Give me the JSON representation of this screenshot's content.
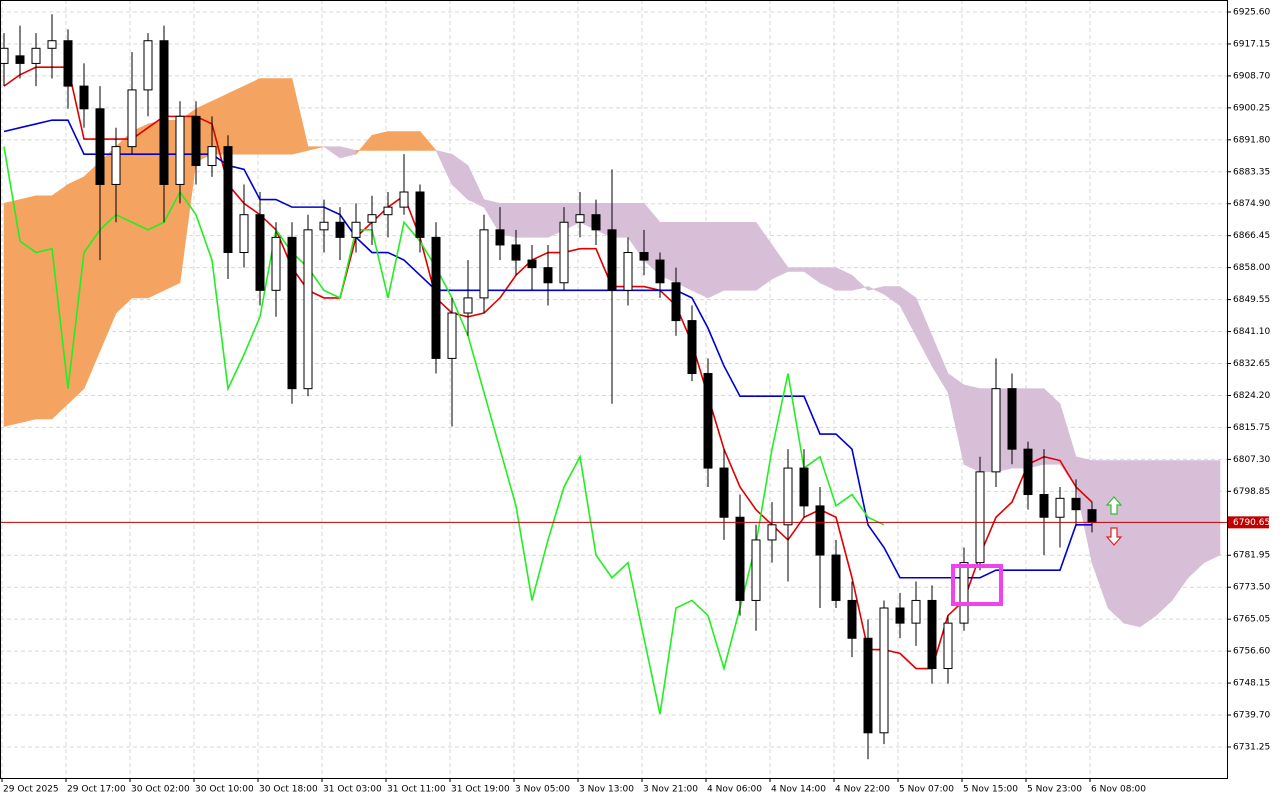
{
  "chart_data": {
    "type": "candlestick",
    "categories": [
      "29 Oct 2025",
      null,
      null,
      null,
      "29 Oct 17:00",
      null,
      null,
      null,
      "30 Oct 02:00",
      null,
      null,
      null,
      "30 Oct 10:00",
      null,
      null,
      null,
      "30 Oct 18:00",
      null,
      null,
      null,
      "31 Oct 03:00",
      null,
      null,
      null,
      "31 Oct 11:00",
      null,
      null,
      null,
      "31 Oct 19:00",
      null,
      null,
      null,
      "3 Nov 05:00",
      null,
      null,
      null,
      "3 Nov 13:00",
      null,
      null,
      null,
      "3 Nov 21:00",
      null,
      null,
      null,
      "4 Nov 06:00",
      null,
      null,
      null,
      "4 Nov 14:00",
      null,
      null,
      null,
      "4 Nov 22:00",
      null,
      null,
      null,
      "5 Nov 07:00",
      null,
      null,
      null,
      "5 Nov 15:00",
      null,
      null,
      null,
      "5 Nov 23:00",
      null,
      null,
      null,
      "6 Nov 08:00",
      null,
      null,
      null,
      null,
      null,
      null,
      null,
      null
    ],
    "open": [
      6912,
      6914,
      6912,
      6916,
      6918,
      6906,
      6900,
      6880,
      6890,
      6905,
      6918,
      6880,
      6898,
      6885,
      6890,
      6862,
      6872,
      6852,
      6866,
      6826,
      6868,
      6870,
      6866,
      6870,
      6872,
      6874,
      6878,
      6866,
      6834,
      6846,
      6850,
      6868,
      6864,
      6860,
      6858,
      6854,
      6870,
      6872,
      6868,
      6852,
      6862,
      6860,
      6854,
      6844,
      6830,
      6805,
      6792,
      6770,
      6786,
      6790,
      6805,
      6795,
      6782,
      6770,
      6760,
      6735,
      6768,
      6764,
      6770,
      6752,
      6764,
      6780,
      6804,
      6826,
      6810,
      6798,
      6792,
      6797,
      6794,
      null,
      null,
      null,
      null,
      null,
      null,
      null,
      null
    ],
    "high": [
      6920,
      6922,
      6920,
      6925,
      6921,
      6912,
      6906,
      6895,
      6915,
      6920,
      6922,
      6902,
      6902,
      6898,
      6893,
      6880,
      6878,
      6870,
      6870,
      6872,
      6876,
      6874,
      6875,
      6877,
      6878,
      6888,
      6880,
      6870,
      6850,
      6860,
      6872,
      6874,
      6868,
      6864,
      6864,
      6874,
      6878,
      6876,
      6884,
      6866,
      6868,
      6862,
      6858,
      6848,
      6834,
      6810,
      6798,
      6790,
      6796,
      6810,
      6810,
      6800,
      6786,
      6775,
      6765,
      6770,
      6772,
      6775,
      6774,
      6766,
      6784,
      6808,
      6834,
      6830,
      6812,
      6810,
      6800,
      6802,
      6796,
      null,
      null,
      null,
      null,
      null,
      null,
      null,
      null
    ],
    "low": [
      6906,
      6908,
      6906,
      6908,
      6900,
      6895,
      6860,
      6870,
      6888,
      6898,
      6870,
      6875,
      6880,
      6882,
      6855,
      6858,
      6848,
      6845,
      6822,
      6824,
      6862,
      6860,
      6862,
      6864,
      6866,
      6872,
      6862,
      6830,
      6816,
      6840,
      6846,
      6860,
      6856,
      6852,
      6848,
      6852,
      6866,
      6864,
      6822,
      6848,
      6856,
      6850,
      6840,
      6828,
      6800,
      6786,
      6766,
      6762,
      6780,
      6775,
      6792,
      6768,
      6768,
      6755,
      6728,
      6732,
      6760,
      6758,
      6748,
      6748,
      6762,
      6778,
      6800,
      6806,
      6794,
      6782,
      6784,
      6790,
      6788,
      null,
      null,
      null,
      null,
      null,
      null,
      null,
      null
    ],
    "close": [
      6916,
      6912,
      6916,
      6918,
      6906,
      6900,
      6880,
      6890,
      6905,
      6918,
      6880,
      6898,
      6885,
      6890,
      6862,
      6872,
      6852,
      6866,
      6826,
      6868,
      6870,
      6866,
      6870,
      6872,
      6874,
      6878,
      6866,
      6834,
      6846,
      6850,
      6868,
      6864,
      6860,
      6858,
      6854,
      6870,
      6872,
      6868,
      6852,
      6862,
      6860,
      6854,
      6844,
      6830,
      6805,
      6792,
      6770,
      6786,
      6790,
      6805,
      6795,
      6782,
      6770,
      6760,
      6735,
      6768,
      6764,
      6770,
      6752,
      6764,
      6780,
      6804,
      6826,
      6810,
      6798,
      6792,
      6797,
      6794,
      6790.65,
      null,
      null,
      null,
      null,
      null,
      null,
      null,
      null
    ],
    "up_color": "#ffffff",
    "down_color": "#000000",
    "lines": [
      {
        "color": "#e00000",
        "values": [
          6906,
          6909,
          6911,
          6911,
          6911,
          6892,
          6892,
          6892,
          6892,
          6895,
          6898,
          6898,
          6898,
          6896,
          6880,
          6875,
          6872,
          6868,
          6858,
          6852,
          6850,
          6850,
          6866,
          6870,
          6874,
          6877,
          6866,
          6850,
          6846,
          6845,
          6846,
          6850,
          6856,
          6860,
          6862,
          6862,
          6863,
          6863,
          6853,
          6853,
          6853,
          6852,
          6848,
          6838,
          6824,
          6810,
          6800,
          6794,
          6790,
          6786,
          6792,
          6794,
          6792,
          6776,
          6757,
          6757,
          6756,
          6752,
          6752,
          6766,
          6770,
          6782,
          6792,
          6796,
          6806,
          6808,
          6807,
          6800,
          6796,
          null,
          null,
          null,
          null,
          null,
          null,
          null,
          null
        ]
      },
      {
        "color": "#0000d0",
        "values": [
          6894,
          6895,
          6896,
          6897,
          6897,
          6888,
          6888,
          6888,
          6888,
          6888,
          6888,
          6888,
          6888,
          6888,
          6885,
          6884,
          6876,
          6876,
          6874,
          6874,
          6874,
          6872,
          6866,
          6862,
          6862,
          6860,
          6856,
          6852,
          6852,
          6852,
          6852,
          6852,
          6852,
          6852,
          6852,
          6852,
          6852,
          6852,
          6852,
          6852,
          6852,
          6852,
          6852,
          6850,
          6842,
          6832,
          6824,
          6824,
          6824,
          6824,
          6824,
          6814,
          6814,
          6810,
          6790,
          6784,
          6776,
          6776,
          6776,
          6776,
          6776,
          6776,
          6778,
          6778,
          6778,
          6778,
          6778,
          6790,
          6790,
          null,
          null,
          null,
          null,
          null,
          null,
          null,
          null
        ]
      },
      {
        "color": "#22ee22",
        "values": [
          6890,
          6865,
          6862,
          6863,
          6826,
          6862,
          6868,
          6872,
          6870,
          6868,
          6870,
          6878,
          6872,
          6860,
          6826,
          6835,
          6845,
          6868,
          6862,
          6858,
          6852,
          6850,
          6868,
          6868,
          6850,
          6870,
          6865,
          6858,
          6850,
          6840,
          6825,
          6810,
          6795,
          6770,
          6786,
          6800,
          6808,
          6782,
          6776,
          6780,
          6760,
          6740,
          6768,
          6770,
          6766,
          6752,
          6768,
          6785,
          6810,
          6830,
          6805,
          6808,
          6795,
          6798,
          6792,
          6790,
          null,
          null,
          null,
          null,
          null,
          null,
          null,
          null,
          null,
          null,
          null,
          null,
          null,
          null,
          null,
          null,
          null,
          null,
          null,
          null,
          null
        ]
      }
    ],
    "cloud": {
      "up_color": "#f4a460",
      "down_color": "#d8bfd8",
      "span_a": [
        6875,
        6876,
        6877,
        6877,
        6880,
        6882,
        6886,
        6890,
        6894,
        6896,
        6897,
        6897,
        6900,
        6902,
        6904,
        6906,
        6908,
        6908,
        6908,
        6890,
        6890,
        6887,
        6888,
        6893,
        6894,
        6894,
        6894,
        6889,
        6880,
        6876,
        6874,
        6867,
        6866,
        6866,
        6866,
        6868,
        6870,
        6868,
        6866,
        6866,
        6860,
        6856,
        6854,
        6852,
        6850,
        6852,
        6852,
        6852,
        6855,
        6857,
        6857,
        6854,
        6852,
        6852,
        6853,
        6851,
        6848,
        6840,
        6832,
        6825,
        6806,
        6804,
        6804,
        6805,
        6805,
        6806,
        6806,
        6800,
        6780,
        6768,
        6764,
        6763,
        6766,
        6770,
        6776,
        6780,
        6782
      ],
      "span_b": [
        6816,
        6817,
        6818,
        6818,
        6822,
        6826,
        6836,
        6846,
        6850,
        6850,
        6852,
        6854,
        6886,
        6888,
        6888,
        6888,
        6888,
        6888,
        6888,
        6889,
        6890,
        6890,
        6889,
        6889,
        6889,
        6889,
        6889,
        6889,
        6888,
        6885,
        6876,
        6875,
        6875,
        6875,
        6875,
        6875,
        6875,
        6875,
        6875,
        6875,
        6875,
        6870,
        6870,
        6870,
        6870,
        6870,
        6870,
        6870,
        6864,
        6858,
        6858,
        6858,
        6858,
        6856,
        6852,
        6853,
        6853,
        6850,
        6840,
        6830,
        6827,
        6826,
        6826,
        6826,
        6826,
        6826,
        6822,
        6808,
        6807,
        6807,
        6807,
        6807,
        6807,
        6807,
        6807,
        6807,
        6807
      ]
    },
    "last_price": 6790.65,
    "last_price_color": "#c00000",
    "ylim": [
      6723.05,
      6928.77
    ],
    "yticks": [
      {
        "value": 6925.6,
        "label": "6925.60"
      },
      6917.15,
      {
        "value": 6908.7,
        "label": "6908.70"
      },
      6900.25,
      {
        "value": 6891.8,
        "label": "6891.80"
      },
      6883.35,
      {
        "value": 6874.9,
        "label": "6874.90"
      },
      6866.45,
      {
        "value": 6858,
        "label": "6858.00"
      },
      6849.55,
      {
        "value": 6841.1,
        "label": "6841.10"
      },
      6832.65,
      {
        "value": 6824.2,
        "label": "6824.20"
      },
      6815.75,
      {
        "value": 6807.3,
        "label": "6807.30"
      },
      6798.85,
      6781.95,
      {
        "value": 6773.5,
        "label": "6773.50"
      },
      6765.05,
      {
        "value": 6756.6,
        "label": "6756.60"
      },
      6748.15,
      {
        "value": 6739.7,
        "label": "6739.70"
      },
      6731.25
    ],
    "grid": true
  }
}
